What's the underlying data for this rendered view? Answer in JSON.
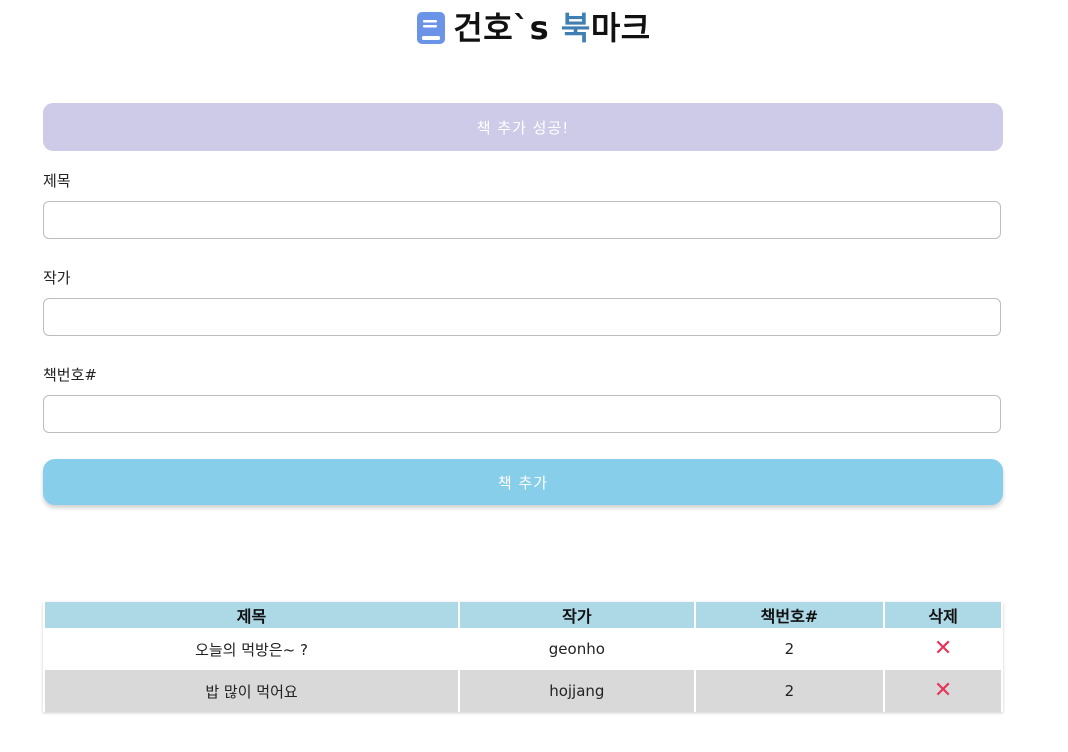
{
  "header": {
    "icon": "book-icon",
    "title_main": "건호`s ",
    "title_accent": "북",
    "title_end": "마크",
    "accent_color": "#3f7fb2"
  },
  "alert": {
    "message": "책 추가 성공!",
    "color": "#cdcbe8"
  },
  "form": {
    "title_label": "제목",
    "title_value": "",
    "author_label": "작가",
    "author_value": "",
    "isbn_label": "책번호#",
    "isbn_value": "",
    "submit_label": "책 추가",
    "submit_color": "#87ceeb"
  },
  "table": {
    "headers": [
      "제목",
      "작가",
      "책번호#",
      "삭제"
    ],
    "header_color": "#add8e6",
    "delete_icon": "close-icon",
    "delete_color": "#e8335a",
    "rows": [
      {
        "title": "오늘의 먹방은~ ?",
        "author": "geonho",
        "isbn": "2",
        "delete": "✕"
      },
      {
        "title": "밥 많이 먹어요",
        "author": "hojjang",
        "isbn": "2",
        "delete": "✕"
      }
    ]
  }
}
